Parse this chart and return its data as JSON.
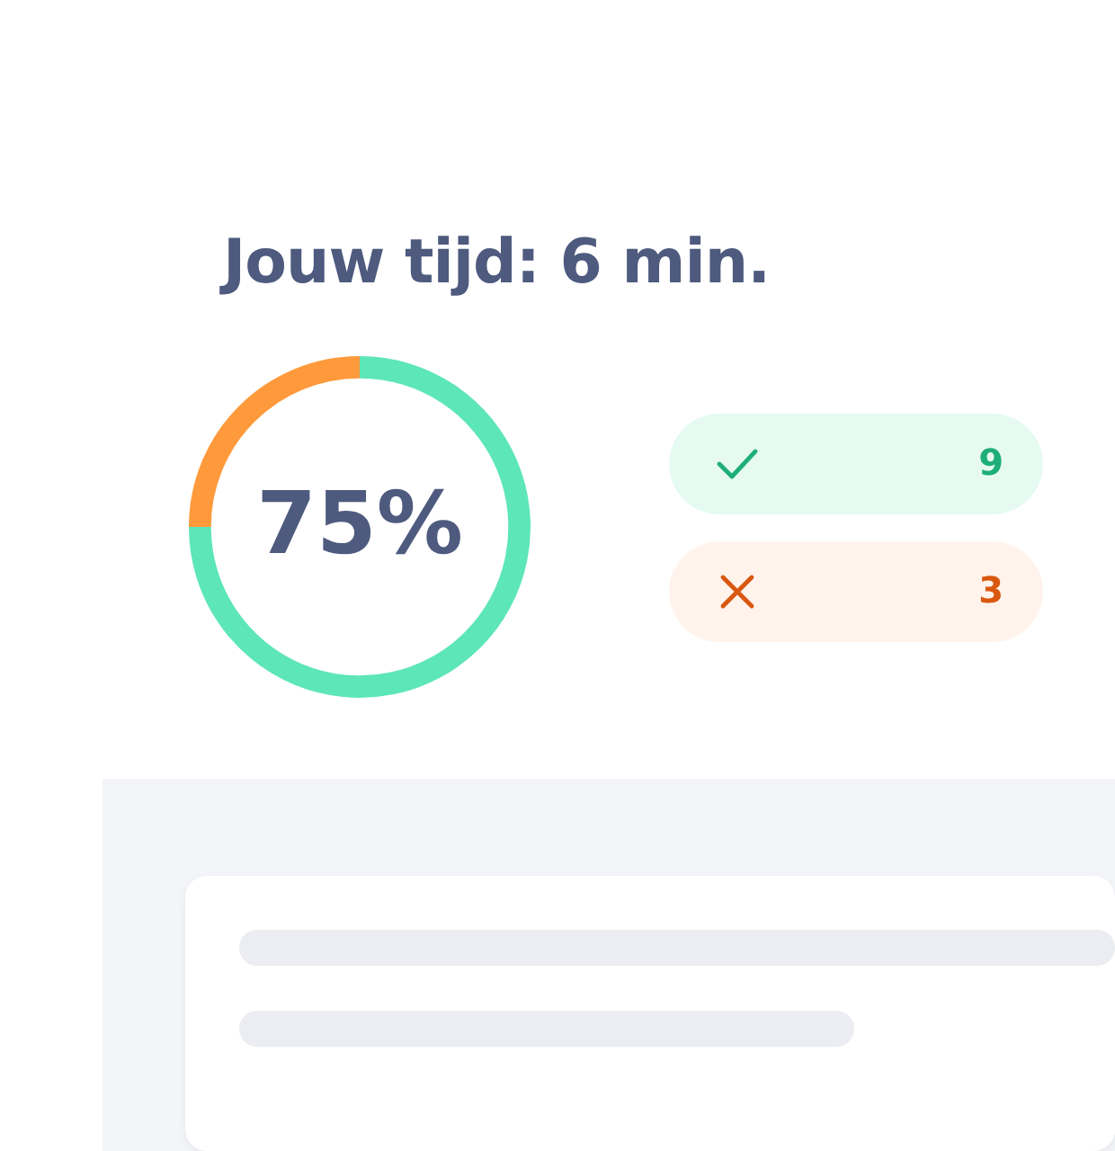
{
  "chart_data": {
    "type": "donut",
    "title": "Jouw tijd: 6 min.",
    "categories": [
      null,
      null
    ],
    "values": [
      75,
      25
    ],
    "colors": [
      "#5de6b8",
      "#ff9a3c"
    ],
    "annotations": [
      "75%",
      "9",
      "3"
    ]
  }
}
